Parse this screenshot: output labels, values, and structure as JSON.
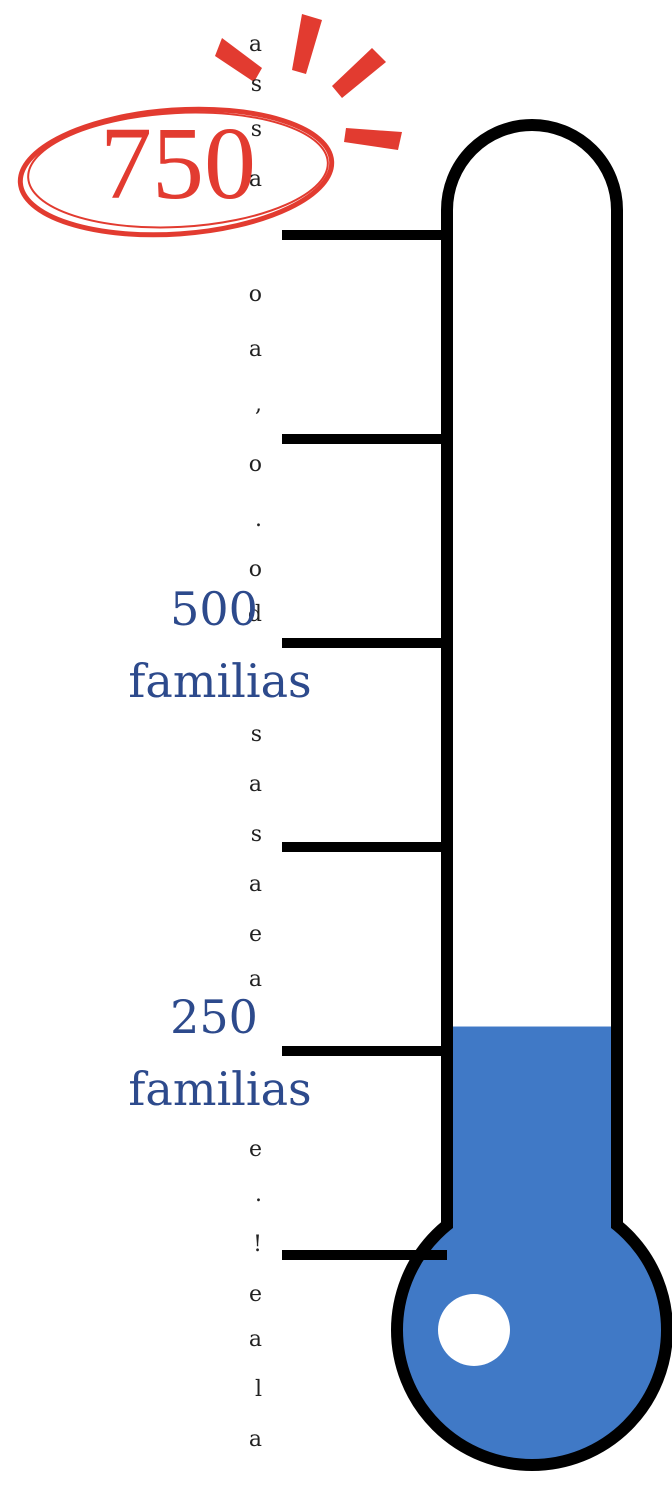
{
  "text_fragments": [
    "a",
    "s",
    "s",
    "a",
    "o",
    "a",
    ",",
    "o",
    ".",
    "o",
    "d",
    "s",
    "a",
    "s",
    "a",
    "e",
    "a",
    "e",
    ".",
    "!",
    "e",
    "a",
    "l",
    "a"
  ],
  "thermometer": {
    "goal_label": "750",
    "labels": [
      {
        "number": "500",
        "unit": "familias"
      },
      {
        "number": "250",
        "unit": "familias"
      }
    ],
    "ticks": [
      750,
      625,
      500,
      375,
      250,
      125
    ],
    "level": 265
  }
}
